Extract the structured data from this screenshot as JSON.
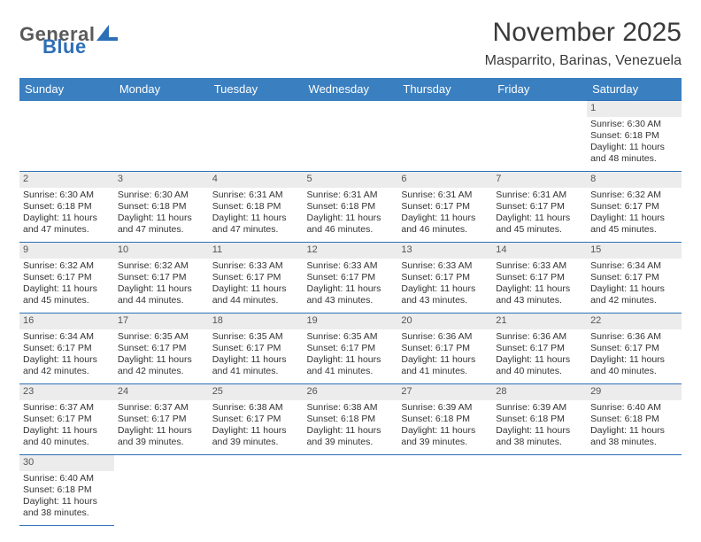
{
  "logo": {
    "part1": "General",
    "part2": "Blue",
    "sail_color": "#2d6fb6"
  },
  "title": "November 2025",
  "subtitle": "Masparrito, Barinas, Venezuela",
  "daynames": [
    "Sunday",
    "Monday",
    "Tuesday",
    "Wednesday",
    "Thursday",
    "Friday",
    "Saturday"
  ],
  "colors": {
    "header_bg": "#3a7fc0",
    "header_fg": "#ffffff",
    "grid_line": "#2d6fb6",
    "daynum_bg": "#ececec",
    "text": "#333333"
  },
  "month": {
    "first_weekday": 6,
    "days_in_month": 30
  },
  "days": {
    "1": {
      "sunrise": "6:30 AM",
      "sunset": "6:18 PM",
      "daylight_h": 11,
      "daylight_m": 48
    },
    "2": {
      "sunrise": "6:30 AM",
      "sunset": "6:18 PM",
      "daylight_h": 11,
      "daylight_m": 47
    },
    "3": {
      "sunrise": "6:30 AM",
      "sunset": "6:18 PM",
      "daylight_h": 11,
      "daylight_m": 47
    },
    "4": {
      "sunrise": "6:31 AM",
      "sunset": "6:18 PM",
      "daylight_h": 11,
      "daylight_m": 47
    },
    "5": {
      "sunrise": "6:31 AM",
      "sunset": "6:18 PM",
      "daylight_h": 11,
      "daylight_m": 46
    },
    "6": {
      "sunrise": "6:31 AM",
      "sunset": "6:17 PM",
      "daylight_h": 11,
      "daylight_m": 46
    },
    "7": {
      "sunrise": "6:31 AM",
      "sunset": "6:17 PM",
      "daylight_h": 11,
      "daylight_m": 45
    },
    "8": {
      "sunrise": "6:32 AM",
      "sunset": "6:17 PM",
      "daylight_h": 11,
      "daylight_m": 45
    },
    "9": {
      "sunrise": "6:32 AM",
      "sunset": "6:17 PM",
      "daylight_h": 11,
      "daylight_m": 45
    },
    "10": {
      "sunrise": "6:32 AM",
      "sunset": "6:17 PM",
      "daylight_h": 11,
      "daylight_m": 44
    },
    "11": {
      "sunrise": "6:33 AM",
      "sunset": "6:17 PM",
      "daylight_h": 11,
      "daylight_m": 44
    },
    "12": {
      "sunrise": "6:33 AM",
      "sunset": "6:17 PM",
      "daylight_h": 11,
      "daylight_m": 43
    },
    "13": {
      "sunrise": "6:33 AM",
      "sunset": "6:17 PM",
      "daylight_h": 11,
      "daylight_m": 43
    },
    "14": {
      "sunrise": "6:33 AM",
      "sunset": "6:17 PM",
      "daylight_h": 11,
      "daylight_m": 43
    },
    "15": {
      "sunrise": "6:34 AM",
      "sunset": "6:17 PM",
      "daylight_h": 11,
      "daylight_m": 42
    },
    "16": {
      "sunrise": "6:34 AM",
      "sunset": "6:17 PM",
      "daylight_h": 11,
      "daylight_m": 42
    },
    "17": {
      "sunrise": "6:35 AM",
      "sunset": "6:17 PM",
      "daylight_h": 11,
      "daylight_m": 42
    },
    "18": {
      "sunrise": "6:35 AM",
      "sunset": "6:17 PM",
      "daylight_h": 11,
      "daylight_m": 41
    },
    "19": {
      "sunrise": "6:35 AM",
      "sunset": "6:17 PM",
      "daylight_h": 11,
      "daylight_m": 41
    },
    "20": {
      "sunrise": "6:36 AM",
      "sunset": "6:17 PM",
      "daylight_h": 11,
      "daylight_m": 41
    },
    "21": {
      "sunrise": "6:36 AM",
      "sunset": "6:17 PM",
      "daylight_h": 11,
      "daylight_m": 40
    },
    "22": {
      "sunrise": "6:36 AM",
      "sunset": "6:17 PM",
      "daylight_h": 11,
      "daylight_m": 40
    },
    "23": {
      "sunrise": "6:37 AM",
      "sunset": "6:17 PM",
      "daylight_h": 11,
      "daylight_m": 40
    },
    "24": {
      "sunrise": "6:37 AM",
      "sunset": "6:17 PM",
      "daylight_h": 11,
      "daylight_m": 39
    },
    "25": {
      "sunrise": "6:38 AM",
      "sunset": "6:17 PM",
      "daylight_h": 11,
      "daylight_m": 39
    },
    "26": {
      "sunrise": "6:38 AM",
      "sunset": "6:18 PM",
      "daylight_h": 11,
      "daylight_m": 39
    },
    "27": {
      "sunrise": "6:39 AM",
      "sunset": "6:18 PM",
      "daylight_h": 11,
      "daylight_m": 39
    },
    "28": {
      "sunrise": "6:39 AM",
      "sunset": "6:18 PM",
      "daylight_h": 11,
      "daylight_m": 38
    },
    "29": {
      "sunrise": "6:40 AM",
      "sunset": "6:18 PM",
      "daylight_h": 11,
      "daylight_m": 38
    },
    "30": {
      "sunrise": "6:40 AM",
      "sunset": "6:18 PM",
      "daylight_h": 11,
      "daylight_m": 38
    }
  },
  "labels": {
    "sunrise": "Sunrise: ",
    "sunset": "Sunset: ",
    "daylight_prefix": "Daylight: ",
    "hours_word": " hours",
    "and_word": "and ",
    "minutes_word": " minutes."
  }
}
